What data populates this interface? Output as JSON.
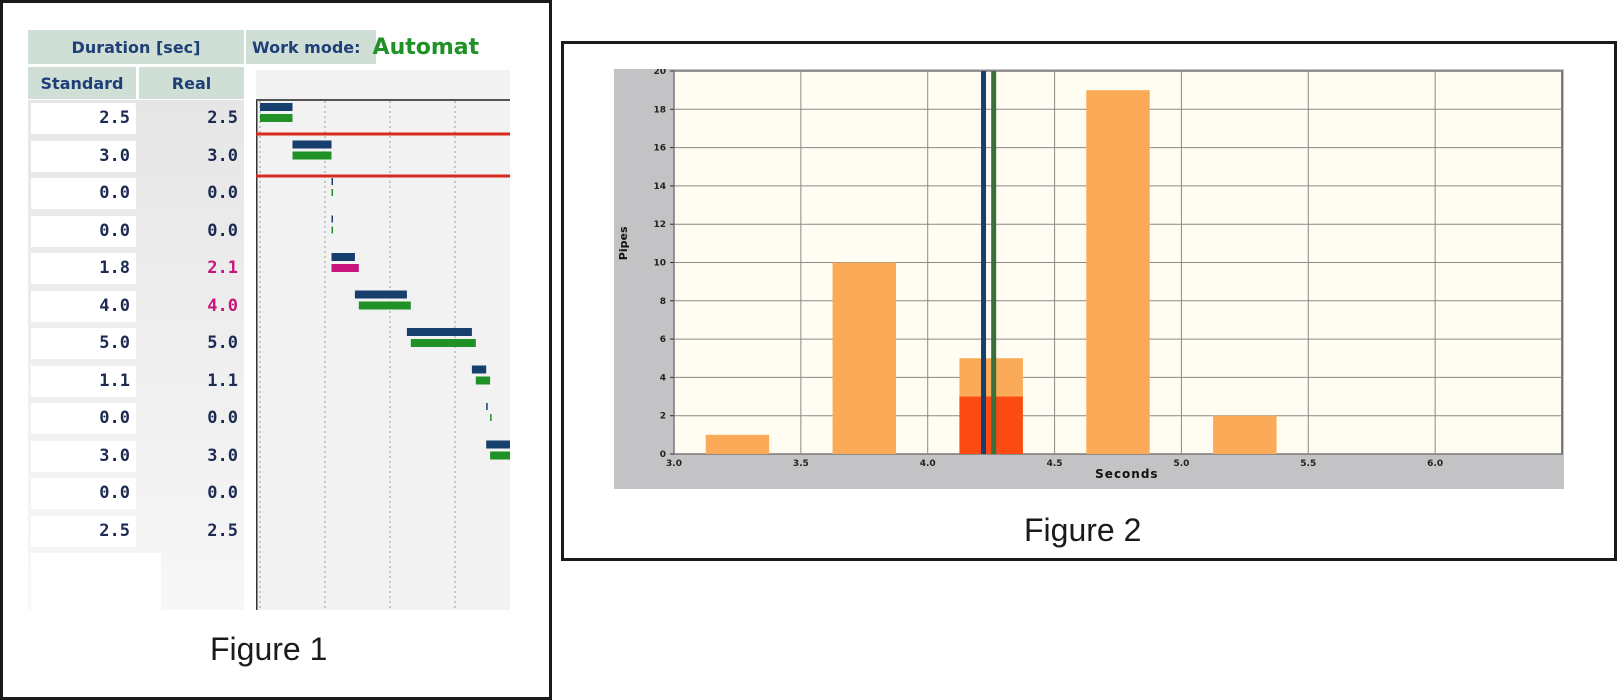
{
  "figure1": {
    "caption": "Figure 1",
    "table": {
      "duration_header": "Duration [sec]",
      "work_mode_label": "Work mode:",
      "work_mode_value": "Automat",
      "columns": [
        "Standard",
        "Real"
      ],
      "rows": [
        {
          "standard": "2.5",
          "real": "2.5",
          "real_highlight": false
        },
        {
          "standard": "3.0",
          "real": "3.0",
          "real_highlight": false
        },
        {
          "standard": "0.0",
          "real": "0.0",
          "real_highlight": false
        },
        {
          "standard": "0.0",
          "real": "0.0",
          "real_highlight": false
        },
        {
          "standard": "1.8",
          "real": "2.1",
          "real_highlight": true
        },
        {
          "standard": "4.0",
          "real": "4.0",
          "real_highlight": true
        },
        {
          "standard": "5.0",
          "real": "5.0",
          "real_highlight": false
        },
        {
          "standard": "1.1",
          "real": "1.1",
          "real_highlight": false
        },
        {
          "standard": "0.0",
          "real": "0.0",
          "real_highlight": false
        },
        {
          "standard": "3.0",
          "real": "3.0",
          "real_highlight": false
        },
        {
          "standard": "0.0",
          "real": "0.0",
          "real_highlight": false
        },
        {
          "standard": "2.5",
          "real": "2.5",
          "real_highlight": false
        }
      ]
    },
    "colors": {
      "standard_bar": "#163f6e",
      "real_bar": "#1f9127",
      "real_over_bar": "#c8157d",
      "highlight_line": "#d92a20"
    }
  },
  "chart_data": {
    "type": "bar",
    "caption": "Figure 2",
    "xlabel": "Seconds",
    "ylabel": "Pipes",
    "xlim": [
      3.0,
      6.5
    ],
    "ylim": [
      0,
      20
    ],
    "x_ticks": [
      "3.0",
      "3.5",
      "4.0",
      "4.5",
      "5.0",
      "5.5",
      "6.0"
    ],
    "y_ticks": [
      0,
      2,
      4,
      6,
      8,
      10,
      12,
      14,
      16,
      18,
      20
    ],
    "bin_width": 0.25,
    "bins": [
      {
        "x0": 3.125,
        "value": 1
      },
      {
        "x0": 3.625,
        "value": 10
      },
      {
        "x0": 4.125,
        "value": 5,
        "highlight_value": 3
      },
      {
        "x0": 4.625,
        "value": 19
      },
      {
        "x0": 5.125,
        "value": 2
      }
    ],
    "vertical_lines": [
      {
        "x": 4.22,
        "color": "#163f6e"
      },
      {
        "x": 4.26,
        "color": "#3a6e3a"
      }
    ],
    "grid": true,
    "colors": {
      "bar": "#fbab57",
      "highlight": "#fc4a13",
      "plot_bg": "#fffdf1",
      "frame_bg": "#c3c2c4"
    }
  }
}
